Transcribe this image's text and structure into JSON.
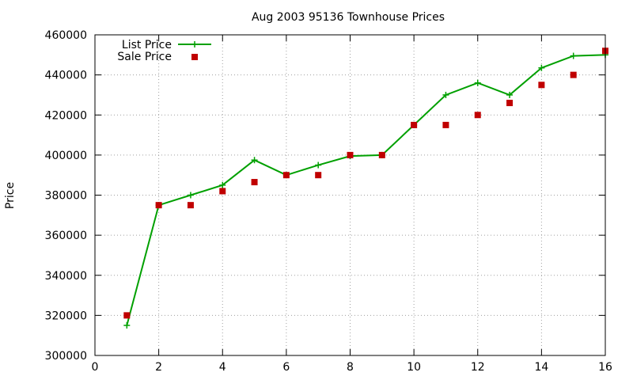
{
  "chart_data": {
    "type": "line",
    "title": "Aug 2003 95136 Townhouse Prices",
    "xlabel": "",
    "ylabel": "Price",
    "xlim": [
      0,
      16
    ],
    "ylim": [
      300000,
      460000
    ],
    "xticks": [
      0,
      2,
      4,
      6,
      8,
      10,
      12,
      14,
      16
    ],
    "yticks": [
      300000,
      320000,
      340000,
      360000,
      380000,
      400000,
      420000,
      440000,
      460000
    ],
    "grid": true,
    "legend_position": "top-left",
    "series": [
      {
        "name": "List Price",
        "kind": "line-with-plus-markers",
        "color": "#00a000",
        "x": [
          1,
          2,
          3,
          4,
          5,
          6,
          7,
          8,
          9,
          10,
          11,
          12,
          13,
          14,
          15,
          16
        ],
        "y": [
          315000,
          375000,
          380000,
          385000,
          397500,
          390000,
          395000,
          399500,
          400000,
          415000,
          430000,
          436000,
          430000,
          443500,
          449500,
          450000
        ]
      },
      {
        "name": "Sale Price",
        "kind": "square-markers",
        "color": "#c00000",
        "x": [
          1,
          2,
          3,
          4,
          5,
          6,
          7,
          8,
          9,
          10,
          11,
          12,
          13,
          14,
          15,
          16
        ],
        "y": [
          320000,
          375000,
          375000,
          382000,
          386500,
          390000,
          390000,
          400000,
          400000,
          415000,
          415000,
          420000,
          426000,
          435000,
          440000,
          452000
        ]
      }
    ]
  }
}
